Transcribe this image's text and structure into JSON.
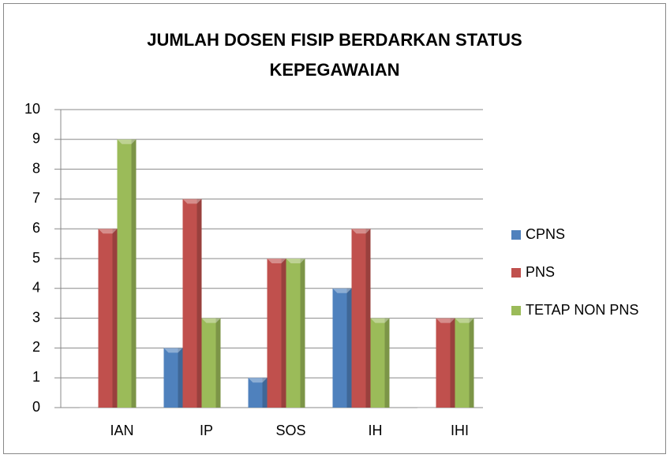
{
  "chart_data": {
    "type": "bar",
    "title": [
      "JUMLAH DOSEN FISIP BERDARKAN STATUS",
      "KEPEGAWAIAN"
    ],
    "categories": [
      "IAN",
      "IP",
      "SOS",
      "IH",
      "IHI"
    ],
    "series": [
      {
        "name": "CPNS",
        "color": "#4f81bd",
        "values": [
          0,
          2,
          1,
          4,
          0
        ]
      },
      {
        "name": "PNS",
        "color": "#c0504d",
        "values": [
          6,
          7,
          5,
          6,
          3
        ]
      },
      {
        "name": "TETAP NON PNS",
        "color": "#9bbb59",
        "values": [
          9,
          3,
          5,
          3,
          3
        ]
      }
    ],
    "ylim": [
      0,
      10
    ],
    "yticks": [
      0,
      1,
      2,
      3,
      4,
      5,
      6,
      7,
      8,
      9,
      10
    ],
    "grid": true,
    "legend": "right"
  }
}
